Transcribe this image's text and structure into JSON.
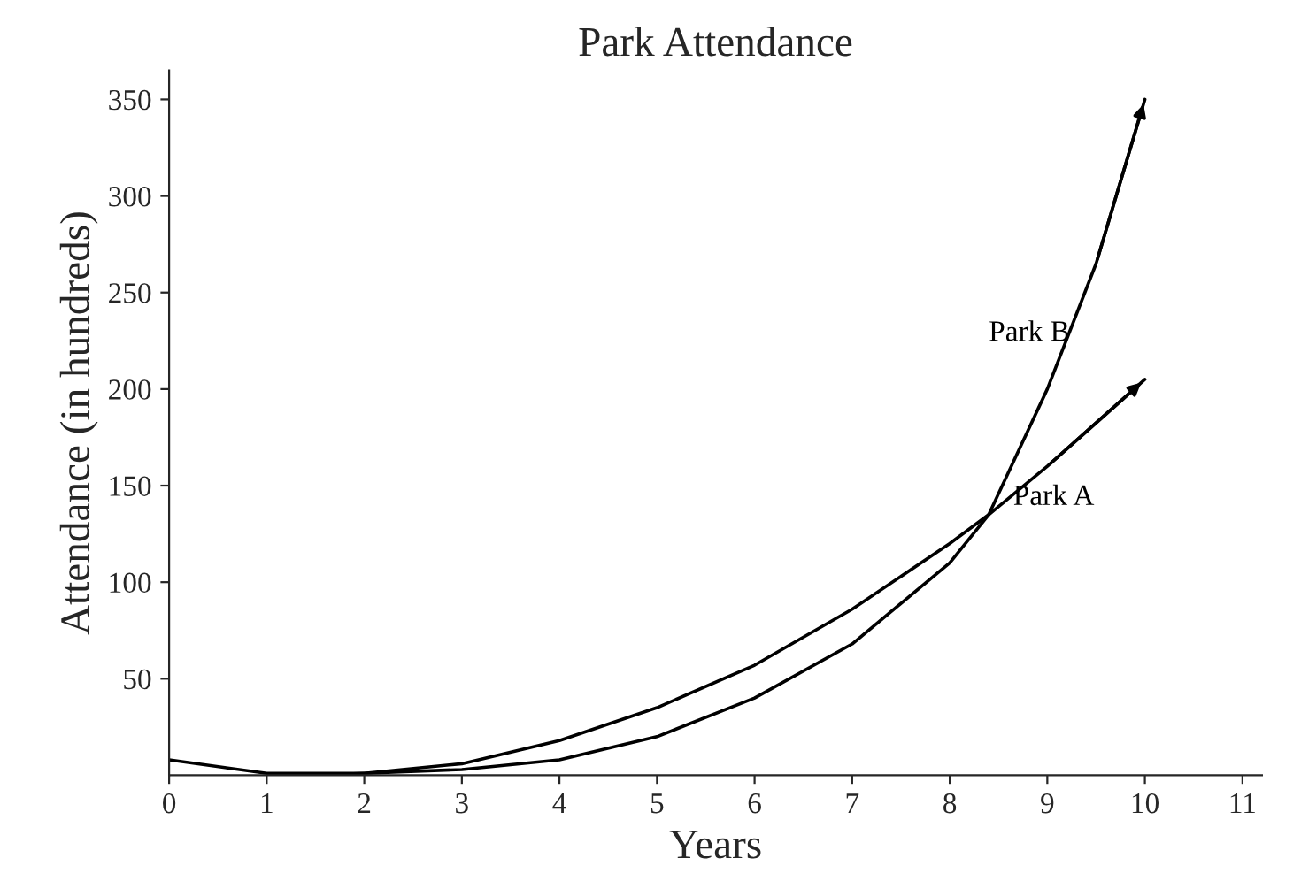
{
  "chart_data": {
    "type": "line",
    "title": "Park Attendance",
    "xlabel": "Years",
    "ylabel": "Attendance (in hundreds)",
    "series": [
      {
        "name": "Park A",
        "color": "#000000",
        "x": [
          0,
          1,
          2,
          3,
          4,
          5,
          6,
          7,
          8,
          8.4,
          9,
          10
        ],
        "values": [
          8,
          1,
          1,
          6,
          18,
          35,
          57,
          86,
          120,
          135,
          160,
          205
        ]
      },
      {
        "name": "Park B",
        "color": "#000000",
        "x": [
          1.5,
          2,
          3,
          4,
          5,
          6,
          7,
          8,
          8.4,
          9,
          9.5,
          10
        ],
        "values": [
          0,
          1,
          3,
          8,
          20,
          40,
          68,
          110,
          135,
          200,
          265,
          350
        ]
      }
    ],
    "xlim": [
      0,
      11.2
    ],
    "ylim": [
      0,
      365
    ],
    "xticks": [
      0,
      1,
      2,
      3,
      4,
      5,
      6,
      7,
      8,
      9,
      10,
      11
    ],
    "yticks": [
      50,
      100,
      150,
      200,
      250,
      300,
      350
    ],
    "grid": false,
    "legend": false,
    "marker": "none",
    "line_style": "solid"
  }
}
